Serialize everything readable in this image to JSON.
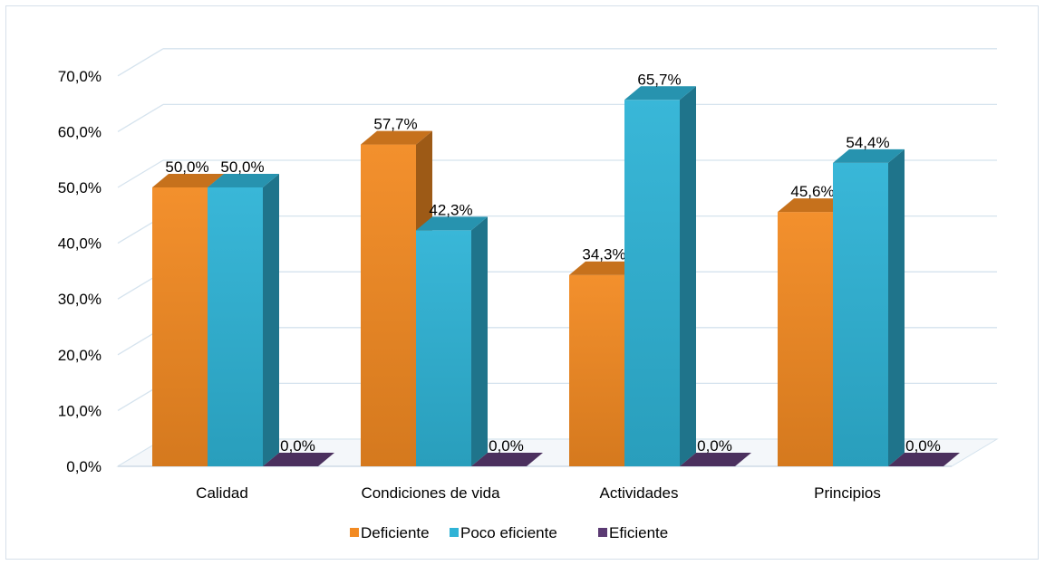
{
  "chart_data": {
    "type": "bar",
    "style": "3d-clustered-column",
    "categories": [
      "Calidad",
      "Condiciones de vida",
      "Actividades",
      "Principios"
    ],
    "series": [
      {
        "name": "Deficiente",
        "values": [
          50.0,
          57.7,
          34.3,
          45.6
        ],
        "color": "#f28a22",
        "labels": [
          "50,0%",
          "57,7%",
          "34,3%",
          "45,6%"
        ]
      },
      {
        "name": "Poco eficiente",
        "values": [
          50.0,
          42.3,
          65.7,
          54.4
        ],
        "color": "#2fb3d6",
        "labels": [
          "50,0%",
          "42,3%",
          "65,7%",
          "54,4%"
        ]
      },
      {
        "name": "Eficiente",
        "values": [
          0.0,
          0.0,
          0.0,
          0.0
        ],
        "color": "#5b3a73",
        "labels": [
          "0,0%",
          "0,0%",
          "0,0%",
          "0,0%"
        ]
      }
    ],
    "ylim": [
      0,
      70
    ],
    "yticks": [
      0,
      10,
      20,
      30,
      40,
      50,
      60,
      70
    ],
    "ytick_labels": [
      "0,0%",
      "10,0%",
      "20,0%",
      "30,0%",
      "40,0%",
      "50,0%",
      "60,0%",
      "70,0%"
    ],
    "title": "",
    "xlabel": "",
    "ylabel": "",
    "grid": true,
    "legend_position": "bottom"
  }
}
